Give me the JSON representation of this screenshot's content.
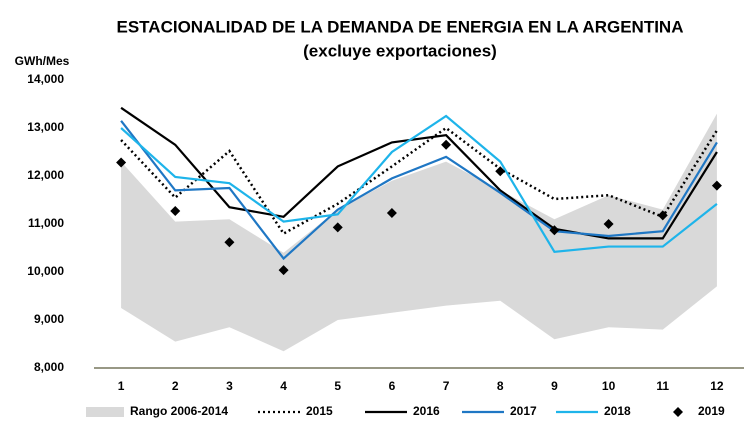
{
  "chart_data": {
    "type": "line",
    "title": "ESTACIONALIDAD DE LA DEMANDA DE ENERGIA EN LA ARGENTINA",
    "subtitle": "(excluye exportaciones)",
    "y_label": "GWh/Mes",
    "categories": [
      "1",
      "2",
      "3",
      "4",
      "5",
      "6",
      "7",
      "8",
      "9",
      "10",
      "11",
      "12"
    ],
    "ylim": [
      8000,
      14000
    ],
    "yticks": [
      {
        "value": 8000,
        "label": "8,000"
      },
      {
        "value": 9000,
        "label": "9,000"
      },
      {
        "value": 10000,
        "label": "10,000"
      },
      {
        "value": 11000,
        "label": "11,000"
      },
      {
        "value": 12000,
        "label": "12,000"
      },
      {
        "value": 13000,
        "label": "13,000"
      },
      {
        "value": 14000,
        "label": "14,000"
      }
    ],
    "grid": false,
    "range": {
      "name": "Rango 2006-2014",
      "color": "#d9d9d9",
      "high": [
        12300,
        11050,
        11100,
        10400,
        11300,
        11900,
        12300,
        11700,
        11100,
        11600,
        11300,
        13300
      ],
      "low": [
        9250,
        8550,
        8850,
        8350,
        9000,
        9150,
        9300,
        9400,
        8600,
        8850,
        8800,
        9700
      ]
    },
    "series": [
      {
        "name": "2015",
        "color": "#000000",
        "dash": "dotted",
        "values": [
          12750,
          11550,
          12520,
          10800,
          11420,
          12200,
          13000,
          12150,
          11520,
          11600,
          11150,
          12950
        ]
      },
      {
        "name": "2016",
        "color": "#000000",
        "dash": "solid",
        "values": [
          13420,
          12650,
          11350,
          11150,
          12200,
          12700,
          12850,
          11700,
          10900,
          10700,
          10700,
          12500
        ]
      },
      {
        "name": "2017",
        "color": "#1f77c4",
        "dash": "solid",
        "values": [
          13150,
          11700,
          11750,
          10280,
          11300,
          11950,
          12400,
          11650,
          10850,
          10750,
          10850,
          12700
        ]
      },
      {
        "name": "2018",
        "color": "#1eb4ea",
        "dash": "solid",
        "values": [
          13000,
          11980,
          11850,
          11050,
          11200,
          12500,
          13250,
          12300,
          10420,
          10530,
          10530,
          11420
        ]
      },
      {
        "name": "2019",
        "color": "#000000",
        "marker": "diamond",
        "values": [
          12280,
          11270,
          10620,
          10040,
          10930,
          11230,
          12650,
          12100,
          10870,
          11000,
          11180,
          11800
        ]
      }
    ]
  }
}
